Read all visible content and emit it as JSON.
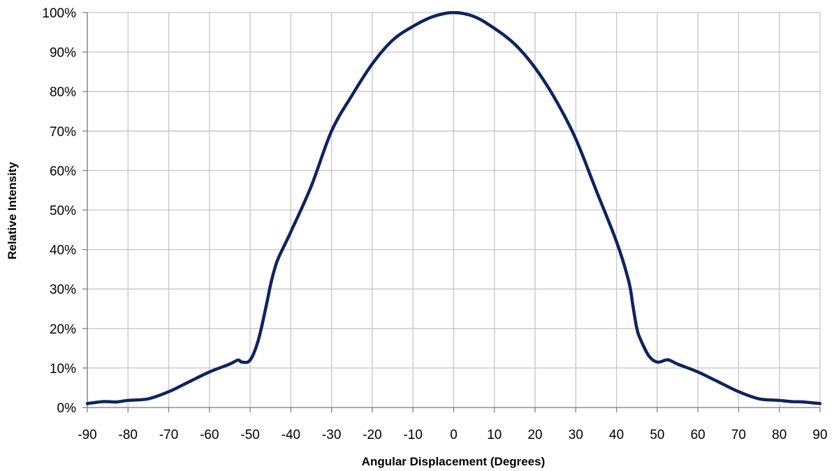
{
  "chart_data": {
    "type": "line",
    "title": "",
    "xlabel": "Angular Displacement (Degrees)",
    "ylabel": "Relative Intensity",
    "xlim": [
      -90,
      90
    ],
    "ylim": [
      0,
      100
    ],
    "x_ticks": [
      -90,
      -80,
      -70,
      -60,
      -50,
      -40,
      -30,
      -20,
      -10,
      0,
      10,
      20,
      30,
      40,
      50,
      60,
      70,
      80,
      90
    ],
    "x_tick_labels": [
      "-90",
      "-80",
      "-70",
      "-60",
      "-50",
      "-40",
      "-30",
      "-20",
      "-10",
      "0",
      "10",
      "20",
      "30",
      "40",
      "50",
      "60",
      "70",
      "80",
      "90"
    ],
    "y_ticks": [
      0,
      10,
      20,
      30,
      40,
      50,
      60,
      70,
      80,
      90,
      100
    ],
    "y_tick_labels": [
      "0%",
      "10%",
      "20%",
      "30%",
      "40%",
      "50%",
      "60%",
      "70%",
      "80%",
      "90%",
      "100%"
    ],
    "grid": true,
    "legend": "none",
    "line_color": "#0d2461",
    "series": [
      {
        "x": [
          -90,
          -86,
          -83,
          -80,
          -75,
          -70,
          -65,
          -60,
          -55,
          -53,
          -52,
          -50,
          -48,
          -46,
          -45,
          -44,
          -43,
          -40,
          -35,
          -30,
          -25,
          -20,
          -15,
          -10,
          -5,
          0,
          5,
          10,
          15,
          20,
          25,
          30,
          35,
          40,
          43,
          44,
          45,
          46,
          48,
          50,
          52,
          53,
          55,
          60,
          65,
          70,
          75,
          80,
          83,
          86,
          90
        ],
        "y": [
          1,
          1.5,
          1.4,
          1.8,
          2.2,
          4,
          6.5,
          9,
          11,
          12,
          11.5,
          12,
          17,
          26,
          31,
          35,
          38,
          44.5,
          56,
          70,
          79,
          87,
          93,
          96.5,
          99,
          100,
          99,
          96,
          92,
          86,
          78,
          68,
          55,
          42,
          32,
          26,
          20,
          17,
          13,
          11.5,
          12,
          12,
          11,
          9,
          6.5,
          4,
          2.2,
          1.8,
          1.5,
          1.4,
          1
        ]
      }
    ]
  }
}
